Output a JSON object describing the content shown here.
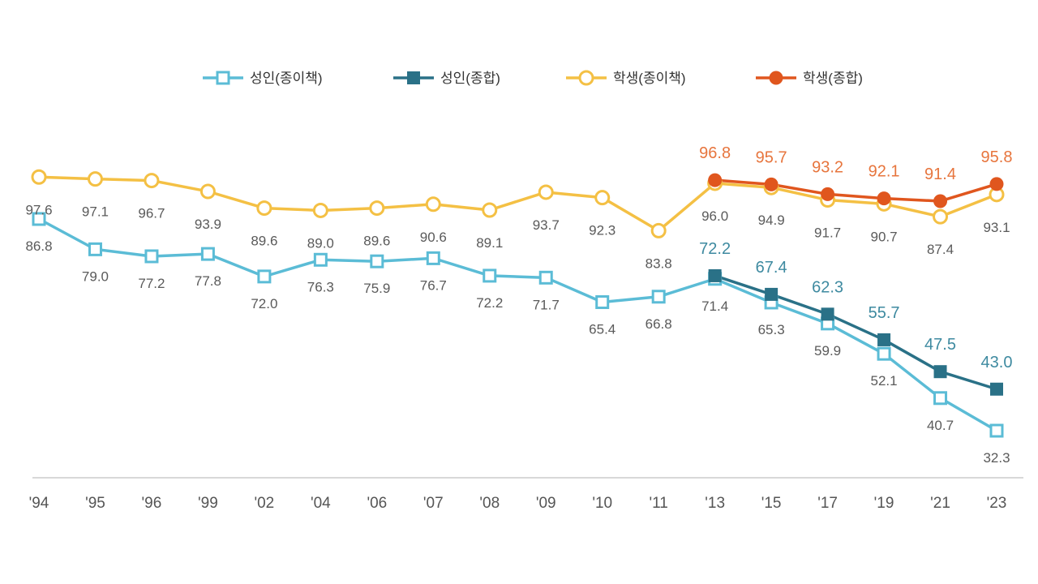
{
  "chart_data": {
    "type": "line",
    "categories": [
      "'94",
      "'95",
      "'96",
      "'99",
      "'02",
      "'04",
      "'06",
      "'07",
      "'08",
      "'09",
      "'10",
      "'11",
      "'13",
      "'15",
      "'17",
      "'19",
      "'21",
      "'23"
    ],
    "series": [
      {
        "name": "성인(종이책)",
        "color": "#5bbcd6",
        "marker": "square-open",
        "values": [
          86.8,
          79.0,
          77.2,
          77.8,
          72.0,
          76.3,
          75.9,
          76.7,
          72.2,
          71.7,
          65.4,
          66.8,
          71.4,
          65.3,
          59.9,
          52.1,
          40.7,
          32.3
        ],
        "labels": [
          "86.8",
          "79.0",
          "77.2",
          "77.8",
          "72.0",
          "76.3",
          "75.9",
          "76.7",
          "72.2",
          "71.7",
          "65.4",
          "66.8",
          "71.4",
          "65.3",
          "59.9",
          "52.1",
          "40.7",
          "32.3"
        ]
      },
      {
        "name": "성인(종합)",
        "color": "#2a7187",
        "marker": "square-filled",
        "values": [
          null,
          null,
          null,
          null,
          null,
          null,
          null,
          null,
          null,
          null,
          null,
          null,
          72.2,
          67.4,
          62.3,
          55.7,
          47.5,
          43.0
        ],
        "labels": [
          null,
          null,
          null,
          null,
          null,
          null,
          null,
          null,
          null,
          null,
          null,
          null,
          "72.2",
          "67.4",
          "62.3",
          "55.7",
          "47.5",
          "43.0"
        ]
      },
      {
        "name": "학생(종이책)",
        "color": "#f4c044",
        "marker": "circle-open",
        "values": [
          97.6,
          97.1,
          96.7,
          93.9,
          89.6,
          89.0,
          89.6,
          90.6,
          89.1,
          93.7,
          92.3,
          83.8,
          96.0,
          94.9,
          91.7,
          90.7,
          87.4,
          93.1
        ],
        "labels": [
          "97.6",
          "97.1",
          "96.7",
          "93.9",
          "89.6",
          "89.0",
          "89.6",
          "90.6",
          "89.1",
          "93.7",
          "92.3",
          "83.8",
          "96.0",
          "94.9",
          "91.7",
          "90.7",
          "87.4",
          "93.1"
        ]
      },
      {
        "name": "학생(종합)",
        "color": "#e0561e",
        "marker": "circle-filled",
        "values": [
          null,
          null,
          null,
          null,
          null,
          null,
          null,
          null,
          null,
          null,
          null,
          null,
          96.8,
          95.7,
          93.2,
          92.1,
          91.4,
          95.8
        ],
        "labels": [
          null,
          null,
          null,
          null,
          null,
          null,
          null,
          null,
          null,
          null,
          null,
          null,
          "96.8",
          "95.7",
          "93.2",
          "92.1",
          "91.4",
          "95.8"
        ]
      }
    ],
    "ylim": [
      20,
      105
    ],
    "grid": false,
    "legend_position": "top"
  }
}
